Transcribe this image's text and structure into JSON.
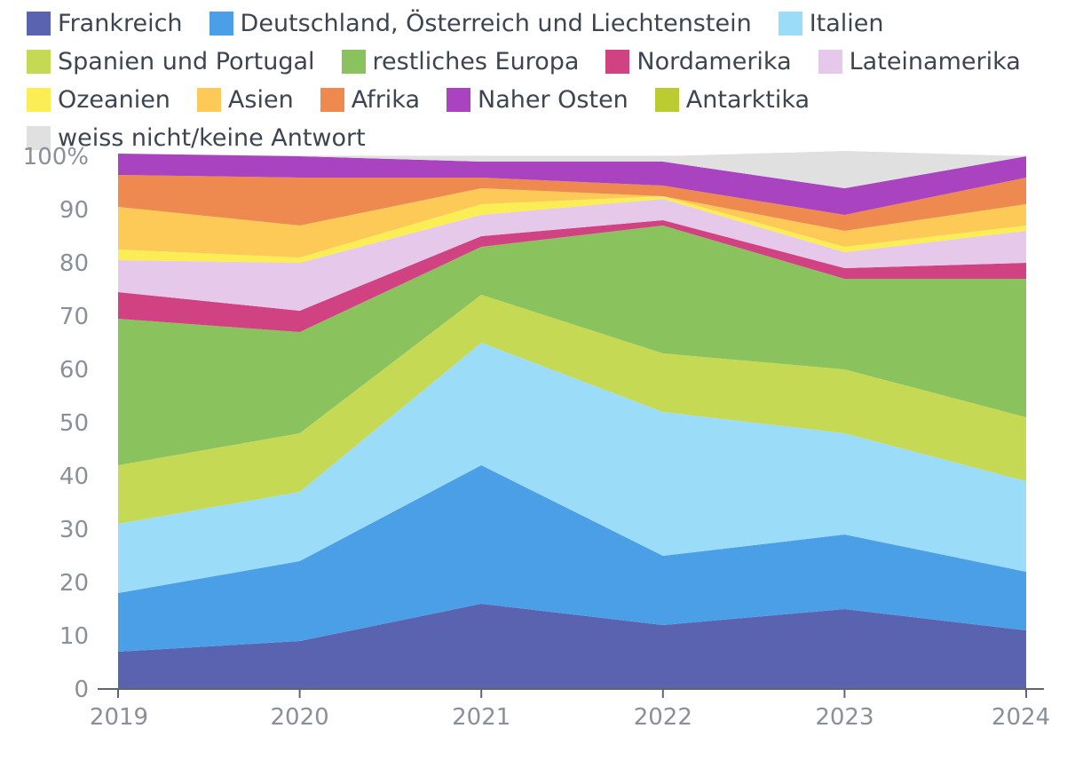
{
  "chart_data": {
    "type": "area",
    "stacked": true,
    "x": [
      "2019",
      "2020",
      "2021",
      "2022",
      "2023",
      "2024"
    ],
    "ylim": [
      0,
      100
    ],
    "yticks": [
      0,
      10,
      20,
      30,
      40,
      50,
      60,
      70,
      80,
      90,
      100
    ],
    "ytick_suffix_top": "%",
    "grid": true,
    "legend_position": "top",
    "series": [
      {
        "name": "Frankreich",
        "color": "#5a63b0",
        "values": [
          7,
          9,
          16,
          12,
          15,
          11
        ]
      },
      {
        "name": "Deutschland, Österreich und Liechtenstein",
        "color": "#4a9fe6",
        "values": [
          11,
          15,
          26,
          13,
          14,
          11
        ]
      },
      {
        "name": "Italien",
        "color": "#9bdcf8",
        "values": [
          13,
          13,
          23,
          27,
          19,
          17
        ]
      },
      {
        "name": "Spanien und Portugal",
        "color": "#c6d955",
        "values": [
          11,
          11,
          9,
          11,
          12,
          12
        ]
      },
      {
        "name": "restliches Europa",
        "color": "#8ac35e",
        "values": [
          27.5,
          19,
          9,
          24,
          17,
          26
        ]
      },
      {
        "name": "Nordamerika",
        "color": "#d14283",
        "values": [
          5,
          4,
          2,
          1,
          2,
          3
        ]
      },
      {
        "name": "Lateinamerika",
        "color": "#e6c8ea",
        "values": [
          6,
          9,
          4,
          4,
          3,
          6
        ]
      },
      {
        "name": "Ozeanien",
        "color": "#fbee55",
        "values": [
          2,
          1,
          2,
          0.5,
          1,
          1
        ]
      },
      {
        "name": "Asien",
        "color": "#fdc957",
        "values": [
          8,
          6,
          3,
          0,
          3,
          4
        ]
      },
      {
        "name": "Afrika",
        "color": "#ee8a50",
        "values": [
          6,
          9,
          2,
          2,
          3,
          5
        ]
      },
      {
        "name": "Naher Osten",
        "color": "#aa43c0",
        "values": [
          4,
          4,
          3,
          4.5,
          5,
          4
        ]
      },
      {
        "name": "Antarktika",
        "color": "#bccb32",
        "values": [
          0,
          0,
          0,
          0,
          0,
          0
        ]
      },
      {
        "name": "weiss nicht/keine Antwort",
        "color": "#e0e0e0",
        "values": [
          0,
          0,
          1,
          1,
          7,
          0
        ]
      }
    ]
  }
}
